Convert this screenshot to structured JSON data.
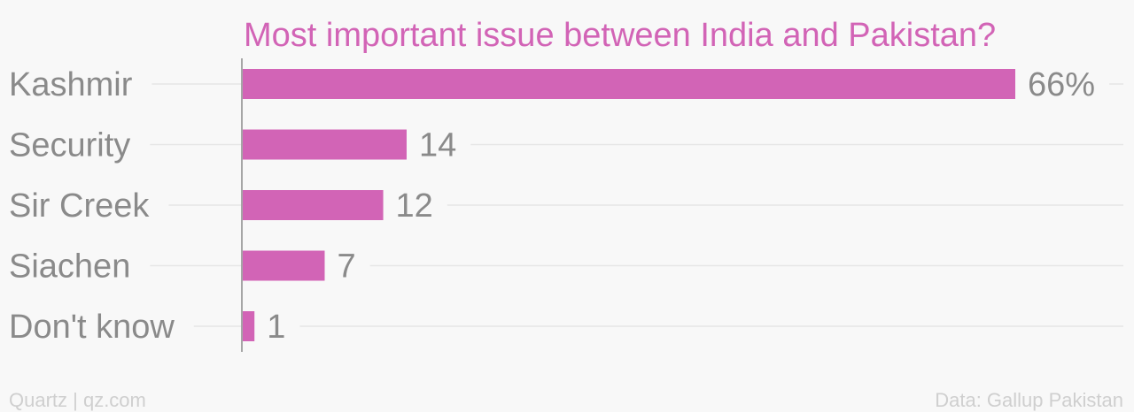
{
  "chart_data": {
    "type": "bar",
    "orientation": "horizontal",
    "title": "Most important issue between India and Pakistan?",
    "categories": [
      "Kashmir",
      "Security",
      "Sir Creek",
      "Siachen",
      "Don't know"
    ],
    "values": [
      66,
      14,
      12,
      7,
      1
    ],
    "value_labels": [
      "66%",
      "14",
      "12",
      "7",
      "1"
    ],
    "xlim": [
      0,
      66
    ],
    "grid": true,
    "bar_color": "#d264b6"
  },
  "footer": {
    "left": "Quartz | qz.com",
    "right": "Data: Gallup Pakistan"
  },
  "colors": {
    "accent": "#d264b6",
    "label": "#8a8a8a",
    "footer": "#cfcfcf",
    "background": "#f8f8f8"
  }
}
